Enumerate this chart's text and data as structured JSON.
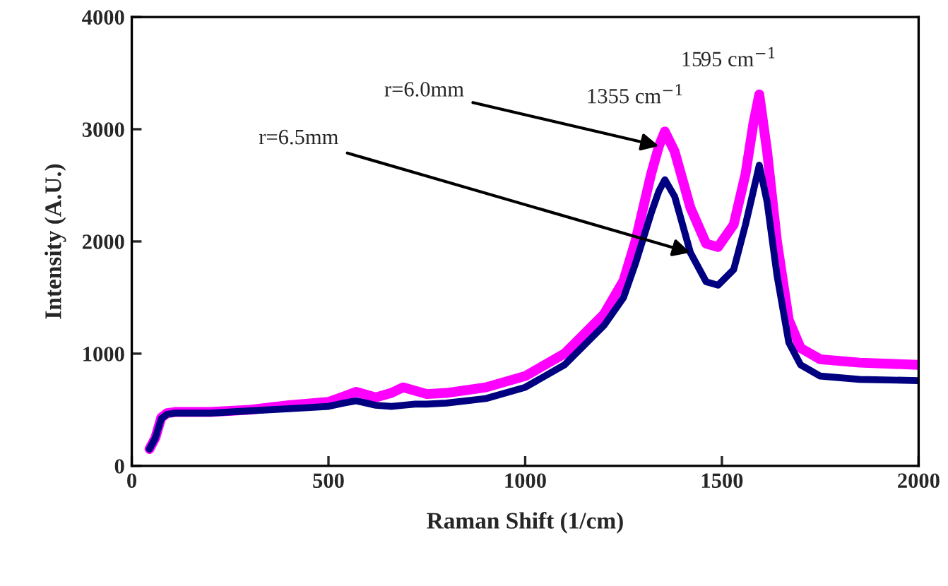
{
  "chart_data": {
    "type": "line",
    "xlabel": "Raman Shift (1/cm)",
    "ylabel": "Intensity (A.U.)",
    "xlim": [
      0,
      2000
    ],
    "xticks": [
      0,
      500,
      1000,
      1500,
      2000
    ],
    "ylim": [
      0,
      4000
    ],
    "yticks": [
      0,
      1000,
      2000,
      3000,
      4000
    ],
    "grid": false,
    "legend": false,
    "marker": "none",
    "line_style": "solid",
    "series": [
      {
        "color": "#ff00ff",
        "x": [
          45,
          60,
          75,
          90,
          110,
          200,
          300,
          400,
          500,
          540,
          570,
          620,
          660,
          690,
          720,
          750,
          800,
          900,
          1000,
          1100,
          1200,
          1250,
          1280,
          1320,
          1340,
          1355,
          1380,
          1420,
          1460,
          1490,
          1530,
          1560,
          1580,
          1595,
          1615,
          1640,
          1670,
          1700,
          1750,
          1850,
          2000
        ],
        "values": [
          150,
          250,
          430,
          470,
          480,
          480,
          500,
          540,
          570,
          620,
          660,
          610,
          650,
          700,
          670,
          640,
          650,
          700,
          800,
          1000,
          1350,
          1650,
          2000,
          2600,
          2850,
          2980,
          2800,
          2300,
          1980,
          1950,
          2150,
          2600,
          3050,
          3310,
          2800,
          2000,
          1300,
          1050,
          950,
          920,
          900
        ]
      },
      {
        "color": "#000080",
        "x": [
          45,
          60,
          75,
          90,
          110,
          200,
          300,
          400,
          500,
          540,
          570,
          620,
          660,
          690,
          720,
          750,
          800,
          900,
          1000,
          1100,
          1200,
          1250,
          1280,
          1320,
          1340,
          1355,
          1380,
          1420,
          1460,
          1490,
          1530,
          1560,
          1580,
          1595,
          1615,
          1640,
          1670,
          1700,
          1750,
          1850,
          2000
        ],
        "values": [
          150,
          250,
          420,
          460,
          470,
          470,
          490,
          510,
          530,
          560,
          580,
          540,
          530,
          540,
          550,
          550,
          560,
          600,
          700,
          900,
          1250,
          1500,
          1800,
          2250,
          2450,
          2550,
          2400,
          1900,
          1640,
          1610,
          1750,
          2150,
          2450,
          2680,
          2350,
          1700,
          1100,
          900,
          800,
          770,
          760
        ]
      }
    ],
    "annotations": [
      {
        "text": "r=6.0mm",
        "x": 1340,
        "y": 2850
      },
      {
        "text": "r=6.5mm",
        "x": 1420,
        "y": 1900
      },
      {
        "text": "1355 cm$^{−1}$",
        "x": 1355,
        "y": 2980
      },
      {
        "text": "1595 cm$^{−1}$",
        "x": 1595,
        "y": 3310
      }
    ]
  }
}
